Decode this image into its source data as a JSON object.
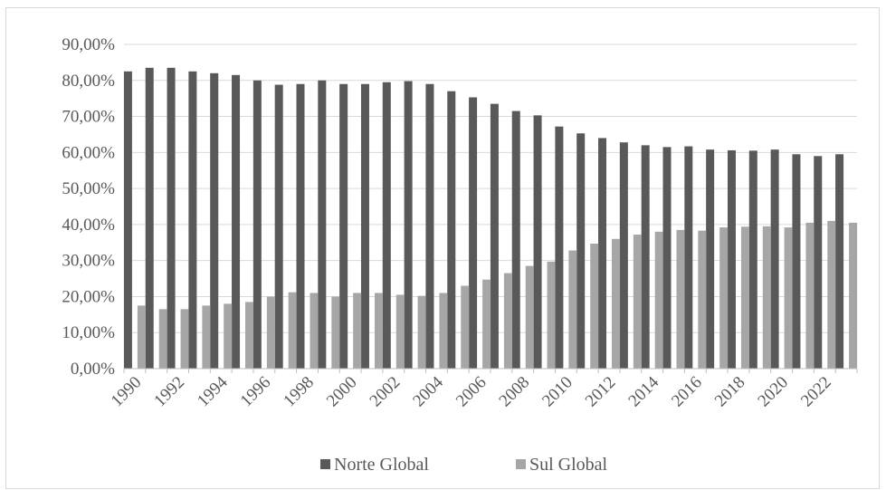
{
  "chart_data": {
    "type": "bar",
    "title": "",
    "xlabel": "",
    "ylabel": "",
    "ylim": [
      0,
      90
    ],
    "y_ticks": [
      "0,00%",
      "10,00%",
      "20,00%",
      "30,00%",
      "40,00%",
      "50,00%",
      "60,00%",
      "70,00%",
      "80,00%",
      "90,00%"
    ],
    "categories": [
      "1990",
      "1991",
      "1992",
      "1993",
      "1994",
      "1995",
      "1996",
      "1997",
      "1998",
      "1999",
      "2000",
      "2001",
      "2002",
      "2003",
      "2004",
      "2005",
      "2006",
      "2007",
      "2008",
      "2009",
      "2010",
      "2011",
      "2012",
      "2013",
      "2014",
      "2015",
      "2016",
      "2017",
      "2018",
      "2019",
      "2020",
      "2021",
      "2022",
      "2023"
    ],
    "x_tick_labels": [
      "1990",
      "1992",
      "1994",
      "1996",
      "1998",
      "2000",
      "2002",
      "2004",
      "2006",
      "2008",
      "2010",
      "2012",
      "2014",
      "2016",
      "2018",
      "2020",
      "2022"
    ],
    "series": [
      {
        "name": "Norte Global",
        "color": "#595959",
        "values": [
          82.5,
          83.5,
          83.5,
          82.5,
          82.0,
          81.5,
          80.0,
          78.8,
          79.0,
          80.0,
          79.0,
          79.0,
          79.5,
          79.8,
          79.0,
          77.0,
          75.3,
          73.5,
          71.5,
          70.3,
          67.2,
          65.3,
          64.0,
          62.8,
          62.0,
          61.5,
          61.7,
          60.8,
          60.6,
          60.5,
          60.8,
          59.5,
          59.0,
          59.5
        ]
      },
      {
        "name": "Sul Global",
        "color": "#a6a6a6",
        "values": [
          17.5,
          16.5,
          16.5,
          17.5,
          18.0,
          18.5,
          20.0,
          21.2,
          21.0,
          20.0,
          21.0,
          21.0,
          20.5,
          20.2,
          21.0,
          23.0,
          24.7,
          26.5,
          28.5,
          29.7,
          32.8,
          34.7,
          36.0,
          37.2,
          38.0,
          38.5,
          38.3,
          39.2,
          39.4,
          39.5,
          39.2,
          40.5,
          41.0,
          40.5
        ]
      }
    ],
    "grid": true,
    "legend_position": "bottom"
  }
}
